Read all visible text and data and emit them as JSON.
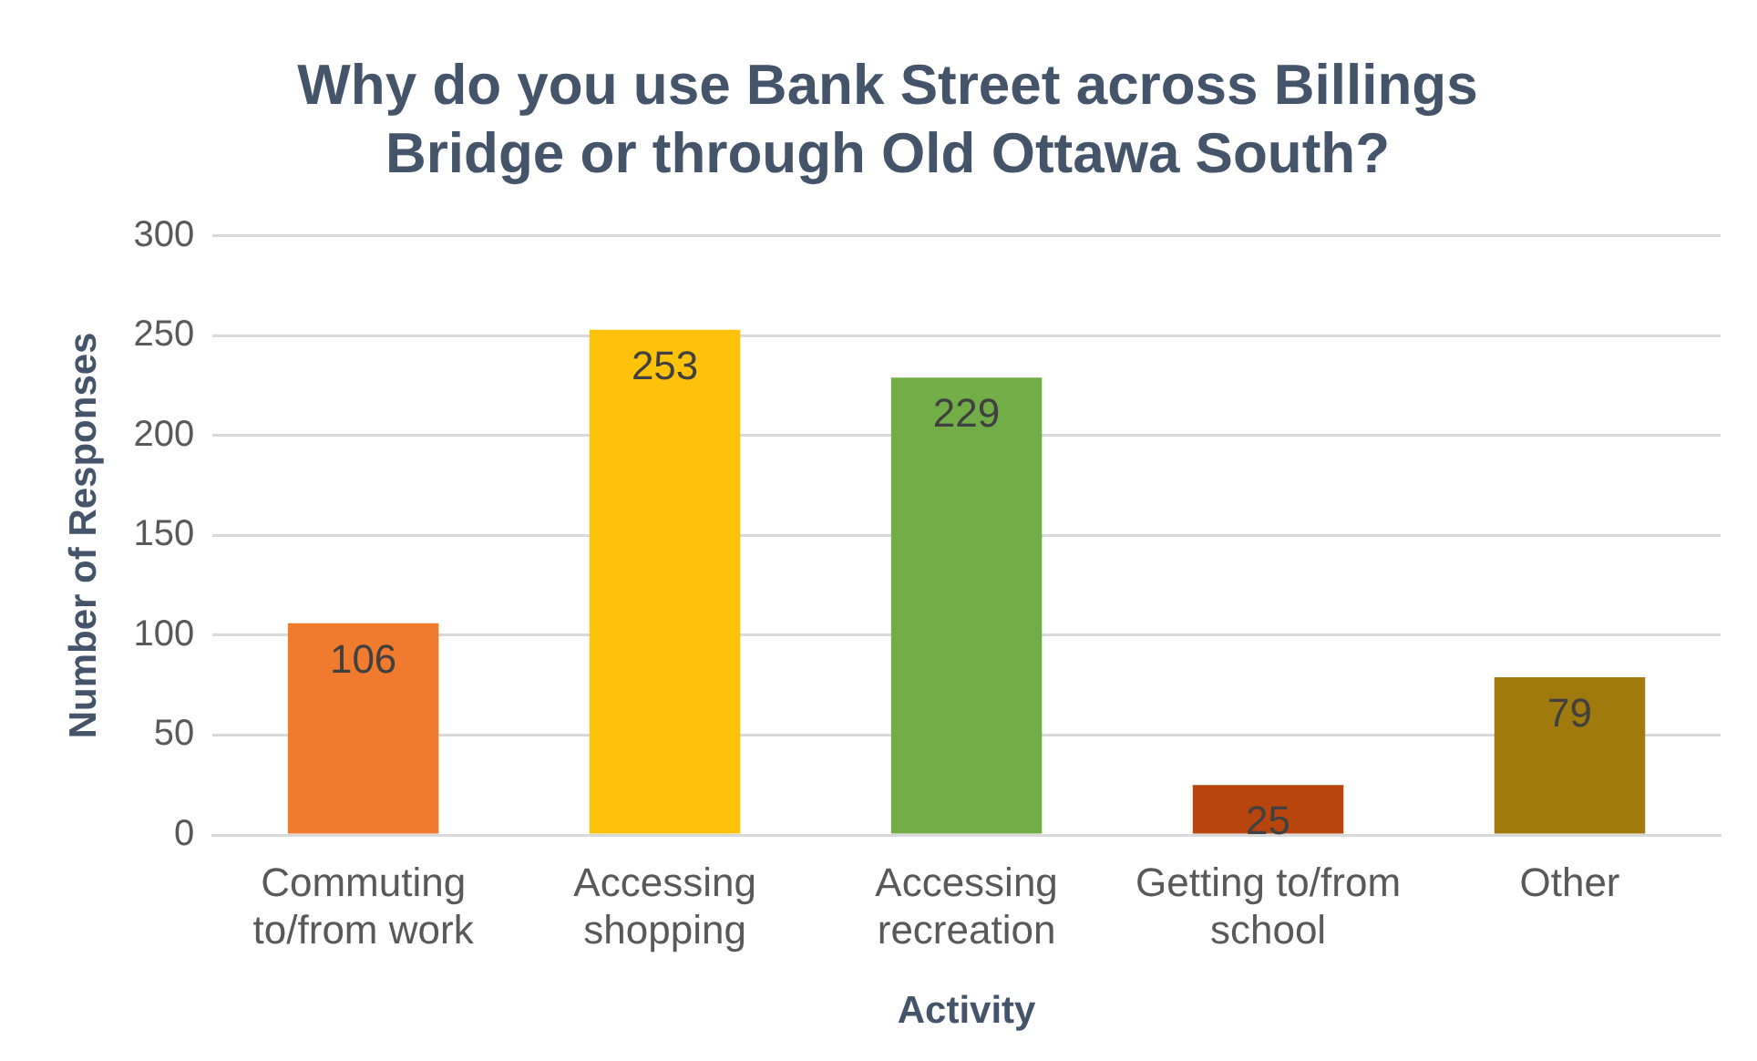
{
  "chart_data": {
    "type": "bar",
    "title": "Why do you use Bank Street across Billings Bridge or through Old Ottawa South?",
    "xlabel": "Activity",
    "ylabel": "Number of Responses",
    "categories": [
      "Commuting to/from work",
      "Accessing shopping",
      "Accessing recreation",
      "Getting to/from school",
      "Other"
    ],
    "values": [
      106,
      253,
      229,
      25,
      79
    ],
    "colors": [
      "#f07b2e",
      "#fec20a",
      "#72ad47",
      "#b8450d",
      "#a07a0c"
    ],
    "ylim": [
      0,
      300
    ],
    "yticks": [
      0,
      50,
      100,
      150,
      200,
      250,
      300
    ],
    "grid": "y",
    "legend": false,
    "data_labels": true
  }
}
